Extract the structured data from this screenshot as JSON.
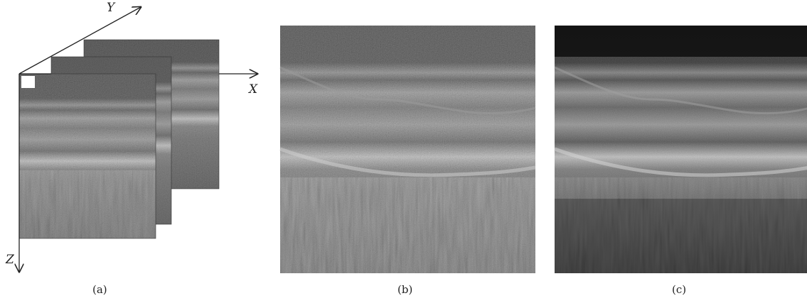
{
  "figure": {
    "panels": [
      {
        "id": "a",
        "caption": "(a)"
      },
      {
        "id": "b",
        "caption": "(b)"
      },
      {
        "id": "c",
        "caption": "(c)"
      }
    ],
    "axes": {
      "x": "X",
      "y": "Y",
      "z": "Z"
    }
  }
}
